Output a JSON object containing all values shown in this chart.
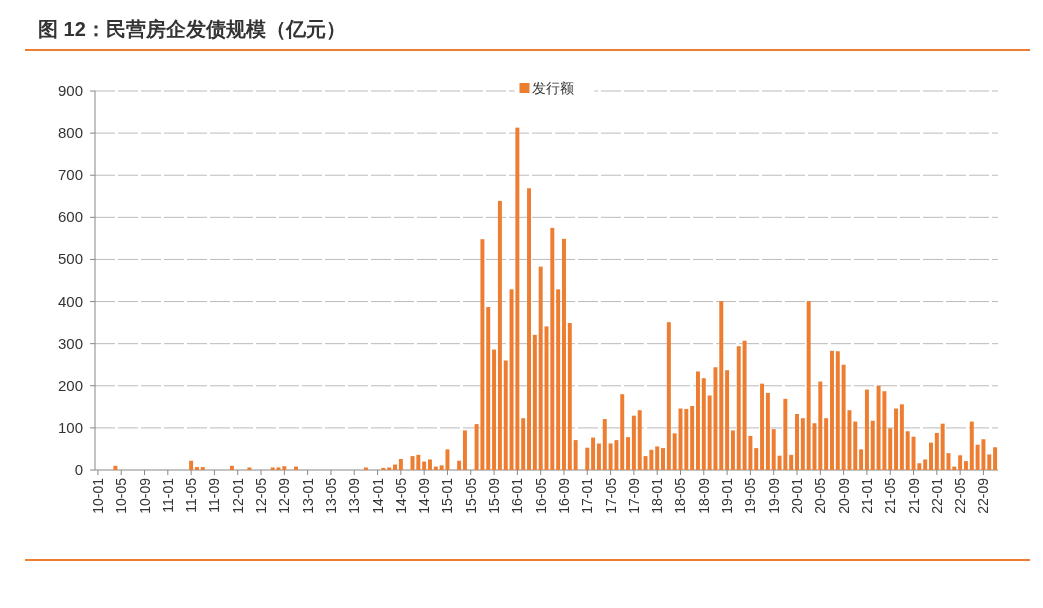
{
  "chart_data": {
    "type": "bar",
    "title": "图 12：民营房企发债规模（亿元）",
    "categories": [
      "10-01",
      null,
      null,
      null,
      "10-05",
      null,
      null,
      null,
      "10-09",
      null,
      null,
      null,
      "11-01",
      null,
      null,
      null,
      "11-05",
      null,
      null,
      null,
      "11-09",
      null,
      null,
      null,
      "12-01",
      null,
      null,
      null,
      "12-05",
      null,
      null,
      null,
      "12-09",
      null,
      null,
      null,
      "13-01",
      null,
      null,
      null,
      "13-05",
      null,
      null,
      null,
      "13-09",
      null,
      null,
      null,
      "14-01",
      null,
      null,
      null,
      "14-05",
      null,
      null,
      null,
      "14-09",
      null,
      null,
      null,
      "15-01",
      null,
      null,
      null,
      "15-05",
      null,
      null,
      null,
      "15-09",
      null,
      null,
      null,
      "16-01",
      null,
      null,
      null,
      "16-05",
      null,
      null,
      null,
      "16-09",
      null,
      null,
      null,
      "17-01",
      null,
      null,
      null,
      "17-05",
      null,
      null,
      null,
      "17-09",
      null,
      null,
      null,
      "18-01",
      null,
      null,
      null,
      "18-05",
      null,
      null,
      null,
      "18-09",
      null,
      null,
      null,
      "19-01",
      null,
      null,
      null,
      "19-05",
      null,
      null,
      null,
      "19-09",
      null,
      null,
      null,
      "20-01",
      null,
      null,
      null,
      "20-05",
      null,
      null,
      null,
      "20-09",
      null,
      null,
      null,
      "21-01",
      null,
      null,
      null,
      "21-05",
      null,
      null,
      null,
      "21-09",
      null,
      null,
      null,
      "22-01",
      null,
      null,
      null,
      "22-05",
      null,
      null,
      null,
      "22-09",
      null,
      null
    ],
    "series": [
      {
        "name": "发行额",
        "color": "#ed7d31",
        "values": [
          null,
          null,
          null,
          10,
          null,
          null,
          null,
          null,
          null,
          null,
          null,
          null,
          null,
          null,
          null,
          null,
          22,
          7,
          7,
          null,
          null,
          null,
          null,
          10,
          null,
          null,
          6,
          null,
          null,
          null,
          6,
          6,
          9,
          null,
          8,
          null,
          null,
          null,
          null,
          null,
          null,
          null,
          null,
          null,
          null,
          null,
          6,
          null,
          null,
          5,
          6,
          13,
          26,
          null,
          33,
          36,
          20,
          25,
          8,
          11,
          49,
          null,
          22,
          94,
          null,
          109,
          548,
          387,
          286,
          639,
          260,
          429,
          813,
          123,
          669,
          321,
          483,
          341,
          575,
          429,
          549,
          349,
          71,
          null,
          53,
          77,
          63,
          121,
          63,
          71,
          180,
          78,
          129,
          142,
          33,
          48,
          56,
          52,
          351,
          87,
          146,
          145,
          152,
          234,
          218,
          177,
          244,
          401,
          237,
          94,
          294,
          307,
          81,
          52,
          205,
          183,
          97,
          34,
          169,
          36,
          133,
          123,
          401,
          111,
          210,
          123,
          283,
          282,
          250,
          142,
          115,
          49,
          191,
          117,
          200,
          187,
          99,
          146,
          156,
          92,
          79,
          16,
          25,
          65,
          88,
          110,
          40,
          8,
          35,
          21,
          115,
          60,
          73,
          37,
          54
        ]
      }
    ],
    "ylim": [
      0,
      900
    ],
    "yticks": [
      0,
      100,
      200,
      300,
      400,
      500,
      600,
      700,
      800,
      900
    ],
    "grid": "y",
    "legend": "top"
  }
}
